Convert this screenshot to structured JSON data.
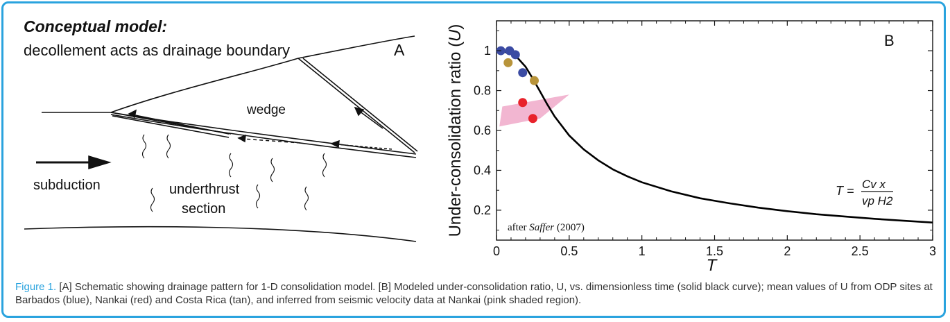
{
  "panel_a": {
    "title": "Conceptual model:",
    "subtitle": "decollement acts as drainage boundary",
    "letter": "A",
    "labels": {
      "wedge": "wedge",
      "subduction": "subduction",
      "underthrust_1": "underthrust",
      "underthrust_2": "section"
    }
  },
  "panel_b": {
    "letter": "B",
    "attribution_prefix": "after ",
    "attribution_author": "Saffer",
    "attribution_year": " (2007)"
  },
  "chart_data": {
    "type": "scatter",
    "xlabel": "T",
    "ylabel_prefix": "Under-consolidation ratio (",
    "ylabel_var": "U",
    "ylabel_suffix": ")",
    "xlim": [
      0,
      3
    ],
    "ylim": [
      0.05,
      1.15
    ],
    "x_ticks": [
      0,
      0.5,
      1,
      1.5,
      2,
      2.5,
      3
    ],
    "x_tick_labels": [
      "0",
      "0.5",
      "1",
      "1.5",
      "2",
      "2.5",
      "3"
    ],
    "y_ticks": [
      0.2,
      0.4,
      0.6,
      0.8,
      1
    ],
    "y_tick_labels": [
      "0.2",
      "0.4",
      "0.6",
      "0.8",
      "1"
    ],
    "equation": {
      "lhs": "T =",
      "numerator": "Cv x",
      "denominator": "vp H2"
    },
    "series": [
      {
        "color": "#3b4ba3",
        "points": [
          [
            0.03,
            1.0
          ],
          [
            0.09,
            1.0
          ],
          [
            0.13,
            0.98
          ],
          [
            0.18,
            0.89
          ]
        ]
      },
      {
        "color": "#e8222b",
        "points": [
          [
            0.18,
            0.74
          ],
          [
            0.25,
            0.66
          ]
        ]
      },
      {
        "color": "#b8943a",
        "points": [
          [
            0.08,
            0.94
          ],
          [
            0.26,
            0.85
          ]
        ]
      }
    ],
    "model_curve": [
      [
        0.0,
        1.0
      ],
      [
        0.05,
        0.995
      ],
      [
        0.1,
        0.985
      ],
      [
        0.15,
        0.96
      ],
      [
        0.2,
        0.92
      ],
      [
        0.25,
        0.86
      ],
      [
        0.3,
        0.795
      ],
      [
        0.35,
        0.73
      ],
      [
        0.4,
        0.67
      ],
      [
        0.5,
        0.575
      ],
      [
        0.6,
        0.505
      ],
      [
        0.7,
        0.45
      ],
      [
        0.8,
        0.405
      ],
      [
        0.9,
        0.37
      ],
      [
        1.0,
        0.34
      ],
      [
        1.2,
        0.295
      ],
      [
        1.4,
        0.26
      ],
      [
        1.6,
        0.235
      ],
      [
        1.8,
        0.213
      ],
      [
        2.0,
        0.195
      ],
      [
        2.2,
        0.18
      ],
      [
        2.4,
        0.168
      ],
      [
        2.6,
        0.157
      ],
      [
        2.8,
        0.147
      ],
      [
        3.0,
        0.138
      ]
    ],
    "shaded_region": {
      "color": "#f0a9c9",
      "points": [
        [
          0.02,
          0.62
        ],
        [
          0.04,
          0.72
        ],
        [
          0.5,
          0.78
        ],
        [
          0.3,
          0.66
        ]
      ]
    }
  },
  "caption": {
    "lead": "Figure 1.",
    "text": " [A] Schematic showing drainage pattern for 1-D consolidation model. [B] Modeled under-consolidation ratio, U, vs. dimensionless time (solid black curve); mean values of U from ODP sites at Barbados (blue), Nankai (red) and Costa Rica (tan), and inferred from seismic velocity data at Nankai (pink shaded region)."
  }
}
